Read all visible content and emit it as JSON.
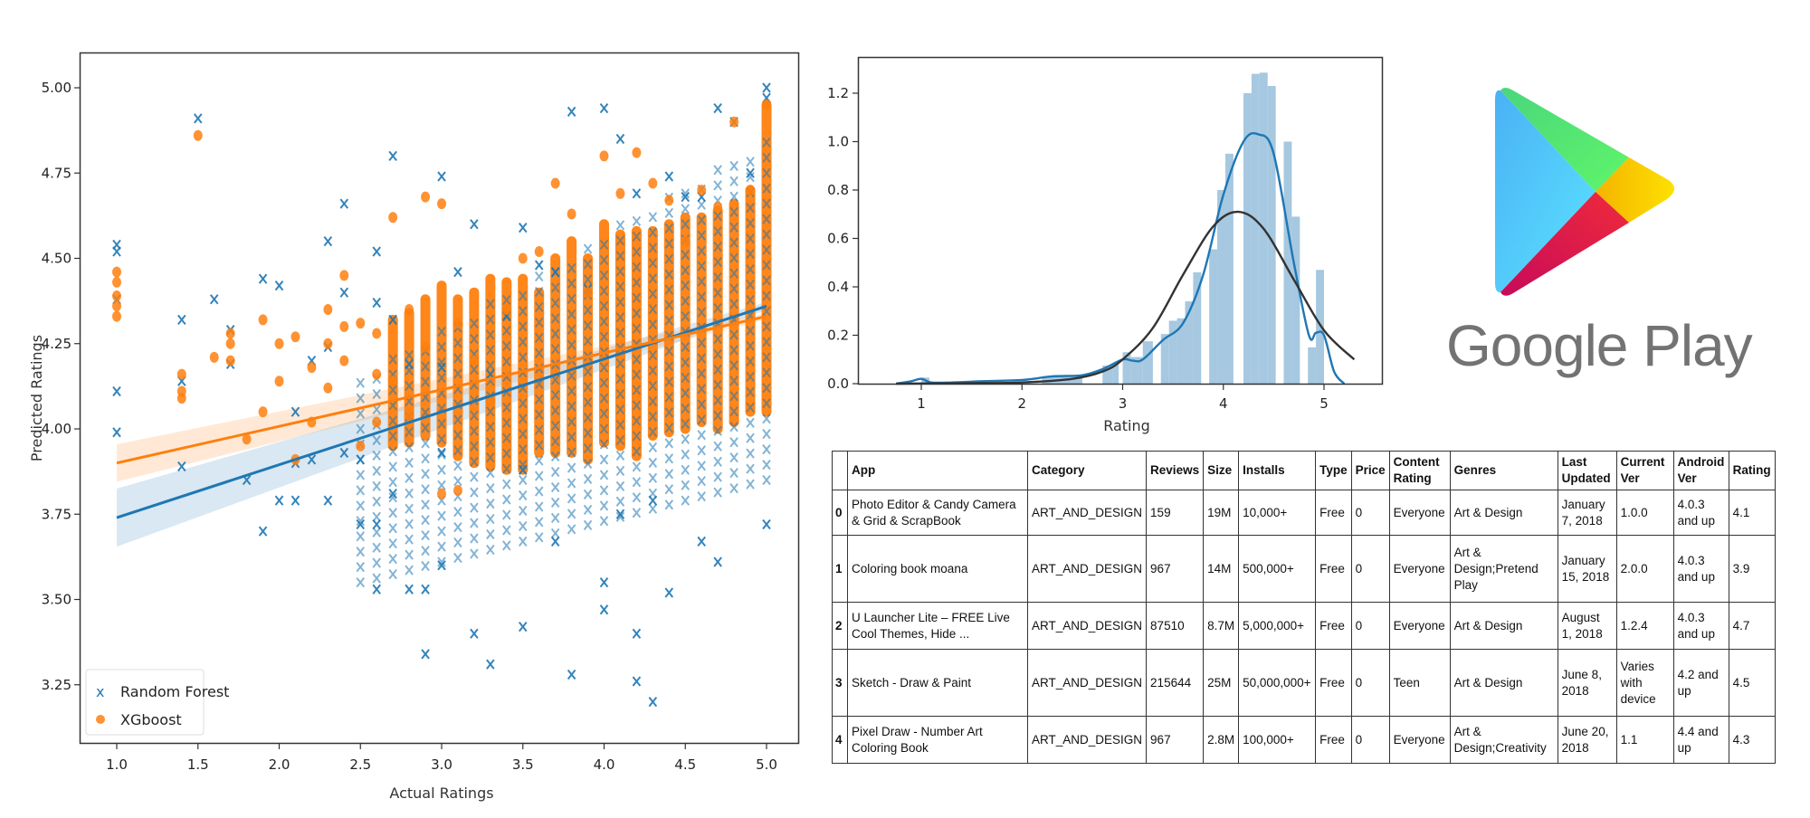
{
  "chart_data": [
    {
      "type": "scatter",
      "title": "",
      "xlabel": "Actual Ratings",
      "ylabel": "Predicted Ratings",
      "xlim": [
        0.8,
        5.2
      ],
      "ylim": [
        3.1,
        5.1
      ],
      "xticks": [
        "1.0",
        "1.5",
        "2.0",
        "2.5",
        "3.0",
        "3.5",
        "4.0",
        "4.5",
        "5.0"
      ],
      "yticks": [
        "3.25",
        "3.50",
        "3.75",
        "4.00",
        "4.25",
        "4.50",
        "4.75",
        "5.00"
      ],
      "grid": false,
      "legend": {
        "placement": "lower-left",
        "entries": [
          "Random Forest",
          "XGboost"
        ]
      },
      "series": [
        {
          "name": "Random Forest",
          "marker": "x",
          "color": "#1f77b4",
          "points": [
            [
              1.0,
              4.54
            ],
            [
              1.0,
              4.52
            ],
            [
              1.0,
              4.11
            ],
            [
              1.0,
              3.99
            ],
            [
              1.0,
              4.38
            ],
            [
              1.4,
              4.32
            ],
            [
              1.4,
              4.14
            ],
            [
              1.4,
              3.89
            ],
            [
              1.5,
              4.91
            ],
            [
              1.6,
              4.38
            ],
            [
              1.7,
              4.29
            ],
            [
              1.7,
              4.19
            ],
            [
              1.8,
              3.85
            ],
            [
              1.9,
              4.44
            ],
            [
              1.9,
              3.7
            ],
            [
              2.0,
              4.42
            ],
            [
              2.0,
              3.79
            ],
            [
              2.1,
              3.79
            ],
            [
              2.1,
              4.05
            ],
            [
              2.1,
              3.9
            ],
            [
              2.2,
              4.2
            ],
            [
              2.2,
              3.91
            ],
            [
              2.3,
              4.55
            ],
            [
              2.3,
              4.24
            ],
            [
              2.3,
              3.79
            ],
            [
              2.4,
              4.66
            ],
            [
              2.4,
              4.4
            ],
            [
              2.4,
              3.93
            ],
            [
              2.5,
              3.72
            ],
            [
              2.5,
              3.91
            ],
            [
              2.6,
              3.53
            ],
            [
              2.6,
              3.72
            ],
            [
              2.6,
              4.52
            ],
            [
              2.6,
              4.37
            ],
            [
              2.7,
              4.8
            ],
            [
              2.7,
              4.32
            ],
            [
              2.7,
              3.81
            ],
            [
              2.8,
              3.53
            ],
            [
              2.8,
              4.19
            ],
            [
              2.9,
              3.34
            ],
            [
              2.9,
              3.53
            ],
            [
              3.0,
              4.74
            ],
            [
              3.0,
              4.18
            ],
            [
              3.0,
              3.6
            ],
            [
              3.0,
              3.93
            ],
            [
              3.1,
              4.46
            ],
            [
              3.2,
              4.6
            ],
            [
              3.2,
              3.4
            ],
            [
              3.3,
              3.31
            ],
            [
              3.3,
              4.16
            ],
            [
              3.4,
              4.33
            ],
            [
              3.5,
              4.59
            ],
            [
              3.5,
              3.42
            ],
            [
              3.5,
              3.88
            ],
            [
              3.6,
              4.48
            ],
            [
              3.7,
              4.46
            ],
            [
              3.7,
              3.67
            ],
            [
              3.8,
              4.93
            ],
            [
              3.8,
              3.28
            ],
            [
              3.9,
              4.41
            ],
            [
              4.0,
              4.94
            ],
            [
              4.0,
              3.47
            ],
            [
              4.0,
              3.55
            ],
            [
              4.1,
              4.85
            ],
            [
              4.1,
              3.75
            ],
            [
              4.2,
              4.69
            ],
            [
              4.2,
              3.4
            ],
            [
              4.2,
              3.26
            ],
            [
              4.3,
              3.2
            ],
            [
              4.3,
              3.79
            ],
            [
              4.4,
              4.74
            ],
            [
              4.4,
              3.52
            ],
            [
              4.5,
              4.68
            ],
            [
              4.6,
              4.68
            ],
            [
              4.6,
              3.67
            ],
            [
              4.7,
              4.94
            ],
            [
              4.7,
              3.61
            ],
            [
              4.8,
              4.9
            ],
            [
              4.9,
              4.75
            ],
            [
              5.0,
              5.0
            ],
            [
              5.0,
              3.72
            ],
            [
              5.0,
              4.97
            ]
          ],
          "regression": {
            "x": [
              1.0,
              5.0
            ],
            "y": [
              3.74,
              4.36
            ]
          }
        },
        {
          "name": "XGboost",
          "marker": "o",
          "color": "#ff7f0e",
          "points": [
            [
              1.0,
              4.46
            ],
            [
              1.0,
              4.43
            ],
            [
              1.0,
              4.39
            ],
            [
              1.0,
              4.36
            ],
            [
              1.0,
              4.33
            ],
            [
              1.4,
              4.16
            ],
            [
              1.4,
              4.11
            ],
            [
              1.4,
              4.09
            ],
            [
              1.5,
              4.86
            ],
            [
              1.6,
              4.21
            ],
            [
              1.7,
              4.28
            ],
            [
              1.7,
              4.25
            ],
            [
              1.7,
              4.2
            ],
            [
              1.8,
              3.97
            ],
            [
              1.9,
              4.32
            ],
            [
              1.9,
              4.05
            ],
            [
              2.0,
              4.25
            ],
            [
              2.0,
              4.14
            ],
            [
              2.1,
              4.27
            ],
            [
              2.1,
              3.91
            ],
            [
              2.2,
              4.18
            ],
            [
              2.2,
              4.02
            ],
            [
              2.3,
              4.35
            ],
            [
              2.3,
              4.25
            ],
            [
              2.3,
              4.12
            ],
            [
              2.4,
              4.45
            ],
            [
              2.4,
              4.3
            ],
            [
              2.4,
              4.2
            ],
            [
              2.5,
              4.31
            ],
            [
              2.5,
              3.95
            ],
            [
              2.6,
              4.28
            ],
            [
              2.6,
              4.16
            ],
            [
              2.6,
              4.02
            ],
            [
              2.7,
              4.62
            ],
            [
              2.7,
              4.14
            ],
            [
              2.8,
              4.35
            ],
            [
              2.8,
              4.04
            ],
            [
              2.9,
              4.68
            ],
            [
              2.9,
              4.24
            ],
            [
              3.0,
              4.66
            ],
            [
              3.0,
              3.81
            ],
            [
              3.1,
              4.31
            ],
            [
              3.1,
              3.82
            ],
            [
              3.2,
              4.2
            ],
            [
              3.3,
              4.08
            ],
            [
              3.4,
              4.35
            ],
            [
              3.5,
              4.5
            ],
            [
              3.6,
              4.52
            ],
            [
              3.7,
              4.72
            ],
            [
              3.8,
              4.63
            ],
            [
              3.9,
              4.4
            ],
            [
              4.0,
              4.8
            ],
            [
              4.1,
              4.69
            ],
            [
              4.2,
              4.81
            ],
            [
              4.3,
              4.72
            ],
            [
              4.4,
              4.67
            ],
            [
              4.5,
              4.55
            ],
            [
              4.6,
              4.7
            ],
            [
              4.7,
              4.65
            ],
            [
              4.8,
              4.9
            ],
            [
              4.9,
              4.7
            ],
            [
              5.0,
              4.95
            ]
          ],
          "columns": [
            {
              "x": 2.7,
              "low": 3.95,
              "high": 4.32
            },
            {
              "x": 2.8,
              "low": 3.96,
              "high": 4.34
            },
            {
              "x": 2.9,
              "low": 3.98,
              "high": 4.38
            },
            {
              "x": 3.0,
              "low": 3.96,
              "high": 4.42
            },
            {
              "x": 3.1,
              "low": 3.92,
              "high": 4.38
            },
            {
              "x": 3.2,
              "low": 3.9,
              "high": 4.4
            },
            {
              "x": 3.3,
              "low": 3.89,
              "high": 4.44
            },
            {
              "x": 3.4,
              "low": 3.88,
              "high": 4.43
            },
            {
              "x": 3.5,
              "low": 3.88,
              "high": 4.44
            },
            {
              "x": 3.6,
              "low": 3.93,
              "high": 4.4
            },
            {
              "x": 3.7,
              "low": 3.93,
              "high": 4.5
            },
            {
              "x": 3.8,
              "low": 3.93,
              "high": 4.55
            },
            {
              "x": 3.9,
              "low": 3.91,
              "high": 4.5
            },
            {
              "x": 4.0,
              "low": 3.96,
              "high": 4.6
            },
            {
              "x": 4.1,
              "low": 3.95,
              "high": 4.57
            },
            {
              "x": 4.2,
              "low": 3.92,
              "high": 4.58
            },
            {
              "x": 4.3,
              "low": 3.98,
              "high": 4.58
            },
            {
              "x": 4.4,
              "low": 3.99,
              "high": 4.6
            },
            {
              "x": 4.5,
              "low": 4.0,
              "high": 4.62
            },
            {
              "x": 4.6,
              "low": 4.02,
              "high": 4.62
            },
            {
              "x": 4.7,
              "low": 4.0,
              "high": 4.64
            },
            {
              "x": 4.8,
              "low": 4.02,
              "high": 4.66
            },
            {
              "x": 4.9,
              "low": 4.05,
              "high": 4.7
            },
            {
              "x": 5.0,
              "low": 4.05,
              "high": 4.95
            }
          ],
          "regression": {
            "x": [
              1.0,
              5.0
            ],
            "y": [
              3.9,
              4.33
            ]
          }
        }
      ]
    },
    {
      "type": "bar",
      "subtype": "histogram-with-kde",
      "title": "",
      "xlabel": "Rating",
      "ylabel": "",
      "xlim": [
        0.5,
        5.5
      ],
      "ylim": [
        0.0,
        1.35
      ],
      "xticks": [
        "1",
        "2",
        "3",
        "4",
        "5"
      ],
      "yticks": [
        "0.0",
        "0.2",
        "0.4",
        "0.6",
        "0.8",
        "1.0",
        "1.2"
      ],
      "grid": false,
      "bar_color": "#a6c8e0",
      "bins": [
        {
          "x0": 1.0,
          "x1": 1.08,
          "value": 0.025
        },
        {
          "x0": 2.2,
          "x1": 2.6,
          "value": 0.03
        },
        {
          "x0": 2.8,
          "x1": 2.9,
          "value": 0.075
        },
        {
          "x0": 2.9,
          "x1": 2.96,
          "value": 0.08
        },
        {
          "x0": 3.0,
          "x1": 3.08,
          "value": 0.13
        },
        {
          "x0": 3.08,
          "x1": 3.2,
          "value": 0.11
        },
        {
          "x0": 3.2,
          "x1": 3.3,
          "value": 0.175
        },
        {
          "x0": 3.38,
          "x1": 3.46,
          "value": 0.205
        },
        {
          "x0": 3.46,
          "x1": 3.54,
          "value": 0.26
        },
        {
          "x0": 3.54,
          "x1": 3.62,
          "value": 0.27
        },
        {
          "x0": 3.62,
          "x1": 3.7,
          "value": 0.34
        },
        {
          "x0": 3.7,
          "x1": 3.78,
          "value": 0.46
        },
        {
          "x0": 3.86,
          "x1": 3.94,
          "value": 0.555
        },
        {
          "x0": 3.94,
          "x1": 4.02,
          "value": 0.8
        },
        {
          "x0": 4.02,
          "x1": 4.1,
          "value": 0.95
        },
        {
          "x0": 4.2,
          "x1": 4.28,
          "value": 1.2
        },
        {
          "x0": 4.28,
          "x1": 4.36,
          "value": 1.28
        },
        {
          "x0": 4.36,
          "x1": 4.44,
          "value": 1.285
        },
        {
          "x0": 4.44,
          "x1": 4.52,
          "value": 1.23
        },
        {
          "x0": 4.6,
          "x1": 4.68,
          "value": 1.0
        },
        {
          "x0": 4.68,
          "x1": 4.76,
          "value": 0.69
        },
        {
          "x0": 4.84,
          "x1": 4.92,
          "value": 0.15
        },
        {
          "x0": 4.92,
          "x1": 5.0,
          "value": 0.47
        }
      ],
      "series": [
        {
          "name": "kde",
          "color": "#1f77b4",
          "x": [
            0.75,
            0.9,
            1.0,
            1.1,
            1.3,
            1.6,
            2.0,
            2.3,
            2.6,
            2.8,
            3.0,
            3.1,
            3.2,
            3.4,
            3.6,
            3.8,
            4.0,
            4.2,
            4.35,
            4.5,
            4.7,
            4.85,
            4.92,
            5.0,
            5.1,
            5.2
          ],
          "y": [
            0.0,
            0.01,
            0.02,
            0.005,
            0.005,
            0.01,
            0.015,
            0.03,
            0.035,
            0.06,
            0.1,
            0.095,
            0.1,
            0.18,
            0.25,
            0.45,
            0.78,
            1.0,
            1.03,
            0.95,
            0.5,
            0.2,
            0.21,
            0.2,
            0.05,
            0.0
          ]
        },
        {
          "name": "normal-fit",
          "color": "#333333",
          "x": [
            0.75,
            1.5,
            2.0,
            2.5,
            2.8,
            3.0,
            3.3,
            3.6,
            3.9,
            4.15,
            4.4,
            4.7,
            5.0,
            5.3
          ],
          "y": [
            0.0,
            0.002,
            0.005,
            0.02,
            0.05,
            0.1,
            0.23,
            0.45,
            0.65,
            0.71,
            0.64,
            0.43,
            0.22,
            0.1
          ]
        }
      ]
    }
  ],
  "logo": {
    "name": "Google Play",
    "colors": {
      "blue": "#4fc3f7",
      "green": "#5ae86c",
      "yellow": "#fbc02d",
      "red": "#e8254a"
    }
  },
  "table": {
    "columns": [
      "",
      "App",
      "Category",
      "Reviews",
      "Size",
      "Installs",
      "Type",
      "Price",
      "Content Rating",
      "Genres",
      "Last Updated",
      "Current Ver",
      "Android Ver",
      "Rating"
    ],
    "rows": [
      [
        "0",
        "Photo Editor & Candy Camera & Grid & ScrapBook",
        "ART_AND_DESIGN",
        "159",
        "19M",
        "10,000+",
        "Free",
        "0",
        "Everyone",
        "Art & Design",
        "January 7, 2018",
        "1.0.0",
        "4.0.3 and up",
        "4.1"
      ],
      [
        "1",
        "Coloring book moana",
        "ART_AND_DESIGN",
        "967",
        "14M",
        "500,000+",
        "Free",
        "0",
        "Everyone",
        "Art & Design;Pretend Play",
        "January 15, 2018",
        "2.0.0",
        "4.0.3 and up",
        "3.9"
      ],
      [
        "2",
        "U Launcher Lite – FREE Live Cool Themes, Hide ...",
        "ART_AND_DESIGN",
        "87510",
        "8.7M",
        "5,000,000+",
        "Free",
        "0",
        "Everyone",
        "Art & Design",
        "August 1, 2018",
        "1.2.4",
        "4.0.3 and up",
        "4.7"
      ],
      [
        "3",
        "Sketch - Draw & Paint",
        "ART_AND_DESIGN",
        "215644",
        "25M",
        "50,000,000+",
        "Free",
        "0",
        "Teen",
        "Art & Design",
        "June 8, 2018",
        "Varies with device",
        "4.2 and up",
        "4.5"
      ],
      [
        "4",
        "Pixel Draw - Number Art Coloring Book",
        "ART_AND_DESIGN",
        "967",
        "2.8M",
        "100,000+",
        "Free",
        "0",
        "Everyone",
        "Art & Design;Creativity",
        "June 20, 2018",
        "1.1",
        "4.4 and up",
        "4.3"
      ]
    ]
  }
}
